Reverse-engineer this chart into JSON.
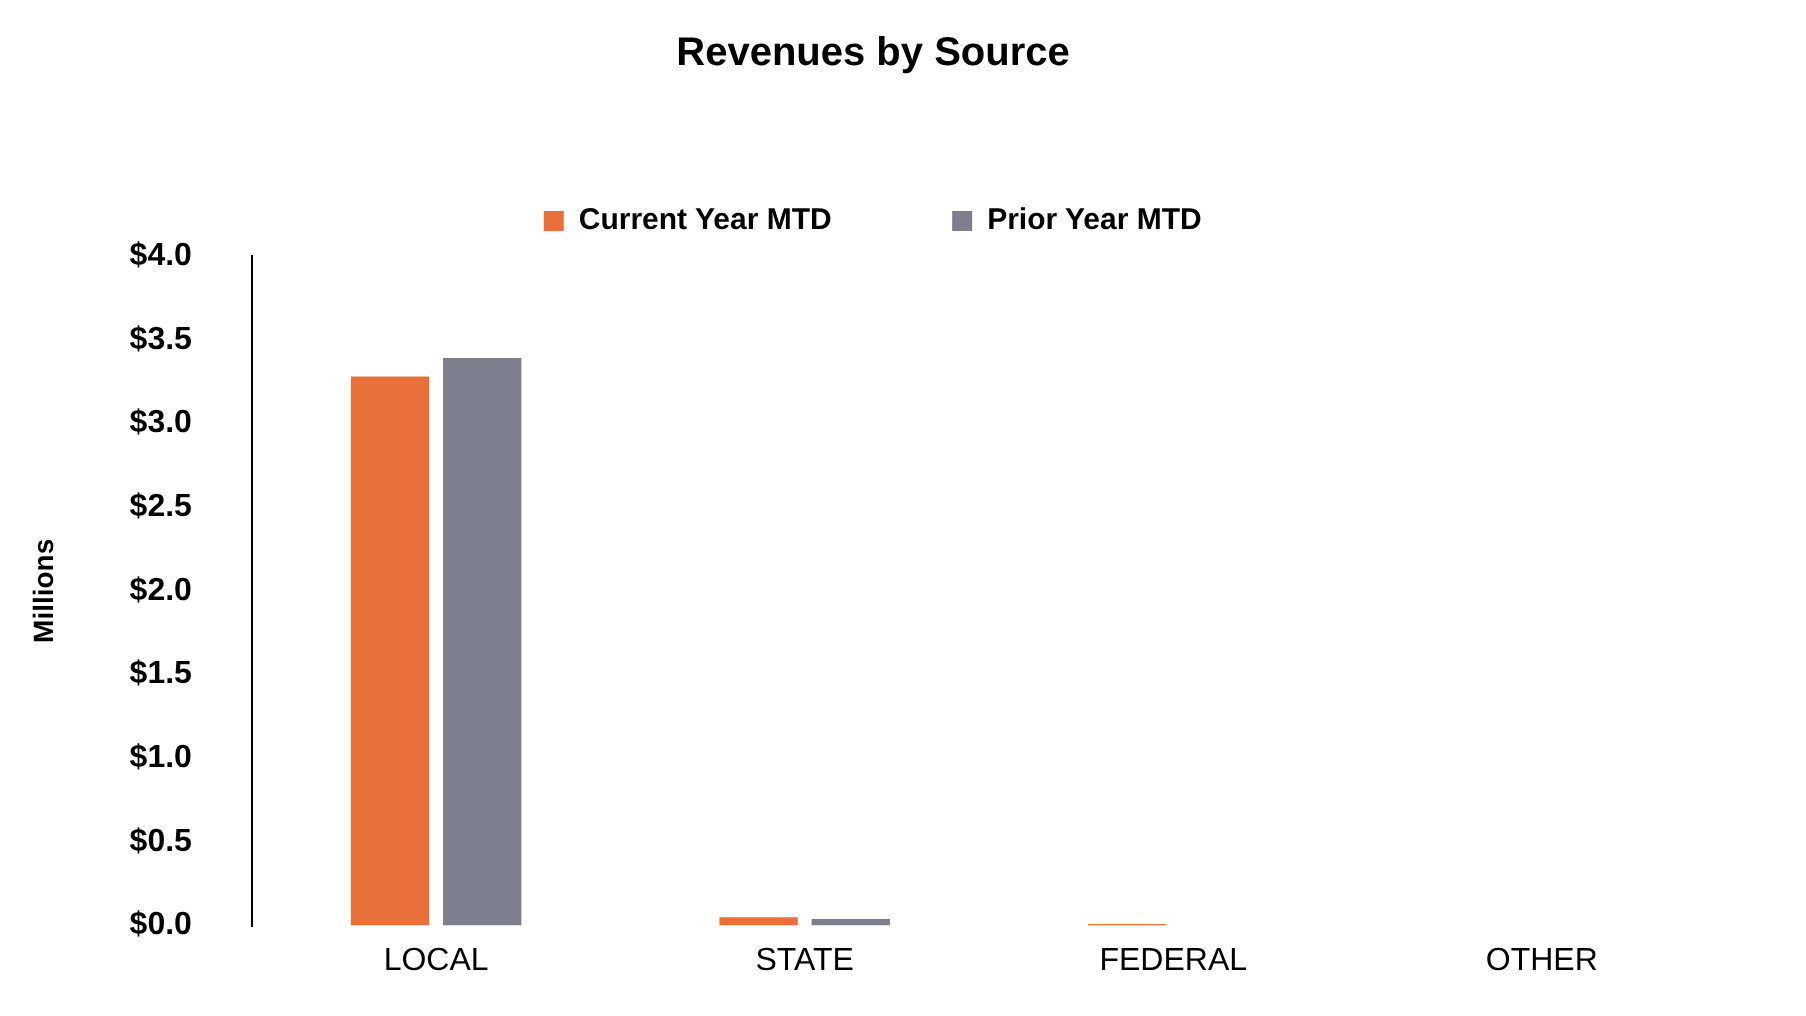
{
  "chart_data": {
    "type": "bar",
    "title": "Revenues by Source",
    "ylabel": "Millions",
    "categories": [
      "LOCAL",
      "STATE",
      "FEDERAL",
      "OTHER"
    ],
    "series": [
      {
        "name": "Current Year MTD",
        "color": "#e8703a",
        "values": [
          3.28,
          0.05,
          0.01,
          0
        ]
      },
      {
        "name": "Prior Year MTD",
        "color": "#7e7f8e",
        "values": [
          3.39,
          0.04,
          0,
          0
        ]
      }
    ],
    "ylim": [
      0,
      4
    ],
    "yticks": [
      {
        "value": 0,
        "label": "$0.0"
      },
      {
        "value": 0.5,
        "label": "$0.5"
      },
      {
        "value": 1,
        "label": "$1.0"
      },
      {
        "value": 1.5,
        "label": "$1.5"
      },
      {
        "value": 2,
        "label": "$2.0"
      },
      {
        "value": 2.5,
        "label": "$2.5"
      },
      {
        "value": 3,
        "label": "$3.0"
      },
      {
        "value": 3.5,
        "label": "$3.5"
      },
      {
        "value": 4,
        "label": "$4.0"
      }
    ],
    "grid": false,
    "legend": "top"
  }
}
